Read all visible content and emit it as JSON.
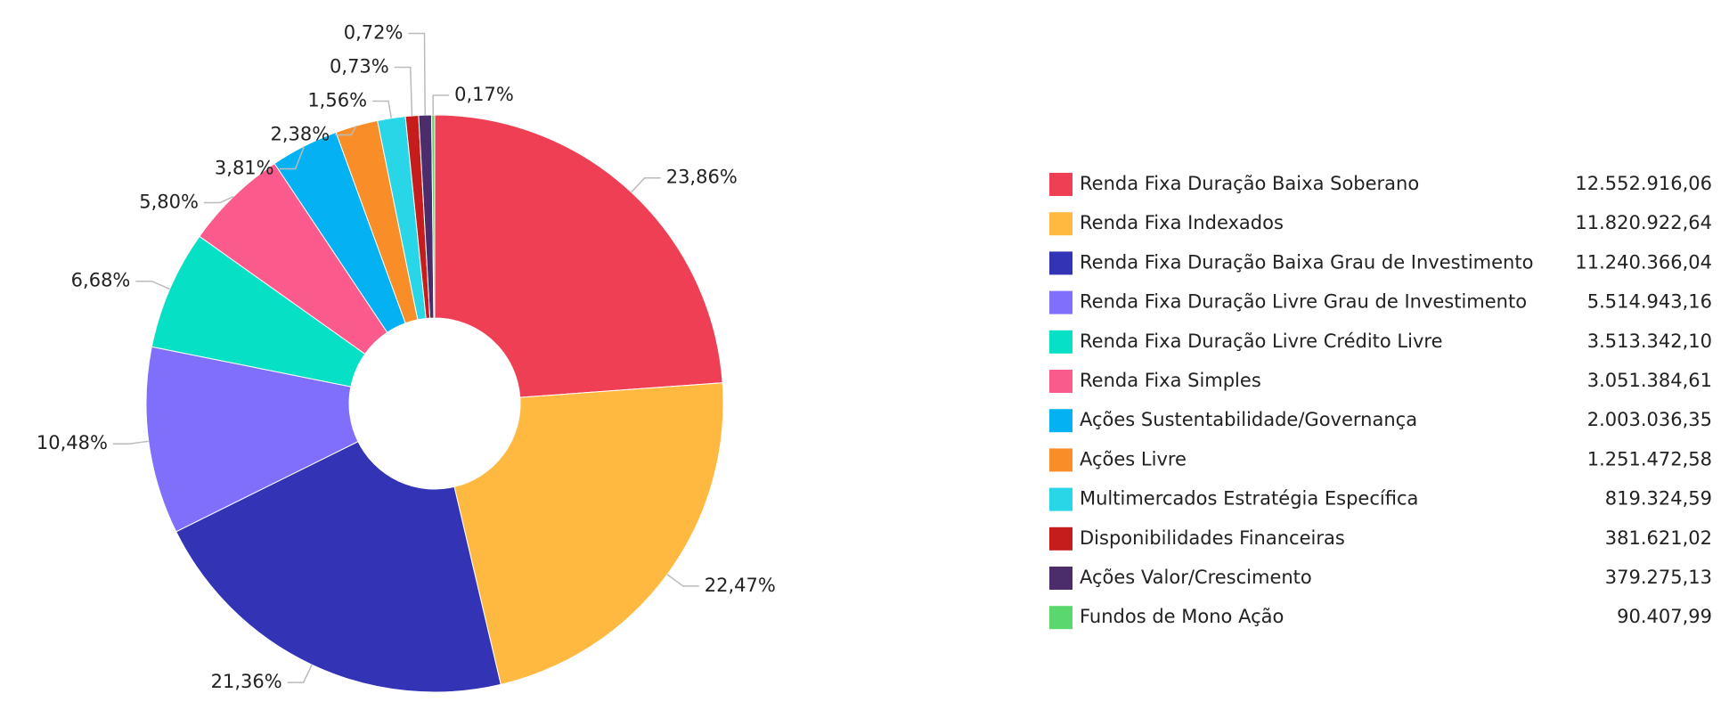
{
  "chart_data": {
    "type": "pie",
    "categories": [
      "Renda Fixa Duração Baixa Soberano",
      "Renda Fixa Indexados",
      "Renda Fixa Duração Baixa Grau de Investimento",
      "Renda Fixa Duração Livre Grau de Investimento",
      "Renda Fixa Duração Livre Crédito Livre",
      "Renda Fixa Simples",
      "Ações Sustentabilidade/Governança",
      "Ações Livre",
      "Multimercados Estratégia Específica",
      "Disponibilidades Financeiras",
      "Ações Valor/Crescimento",
      "Fundos de Mono Ação"
    ],
    "values": [
      23.86,
      22.47,
      21.36,
      10.48,
      6.68,
      5.8,
      3.81,
      2.38,
      1.56,
      0.73,
      0.72,
      0.17
    ],
    "value_labels": [
      "23,86%",
      "22,47%",
      "21,36%",
      "10,48%",
      "6,68%",
      "5,80%",
      "3,81%",
      "2,38%",
      "1,56%",
      "0,73%",
      "0,72%",
      "0,17%"
    ],
    "legend_values": [
      "12.552.916,06",
      "11.820.922,64",
      "11.240.366,04",
      "5.514.943,16",
      "3.513.342,10",
      "3.051.384,61",
      "2.003.036,35",
      "1.251.472,58",
      "819.324,59",
      "381.621,02",
      "379.275,13",
      "90.407,99"
    ],
    "colors": [
      "#ef3f54",
      "#ffb940",
      "#3333b5",
      "#7f6ffb",
      "#06e0c4",
      "#fb5a8d",
      "#04b1f3",
      "#f98e28",
      "#29d6e8",
      "#c61c1c",
      "#4b2d6b",
      "#5ad86d"
    ],
    "donut": true
  }
}
